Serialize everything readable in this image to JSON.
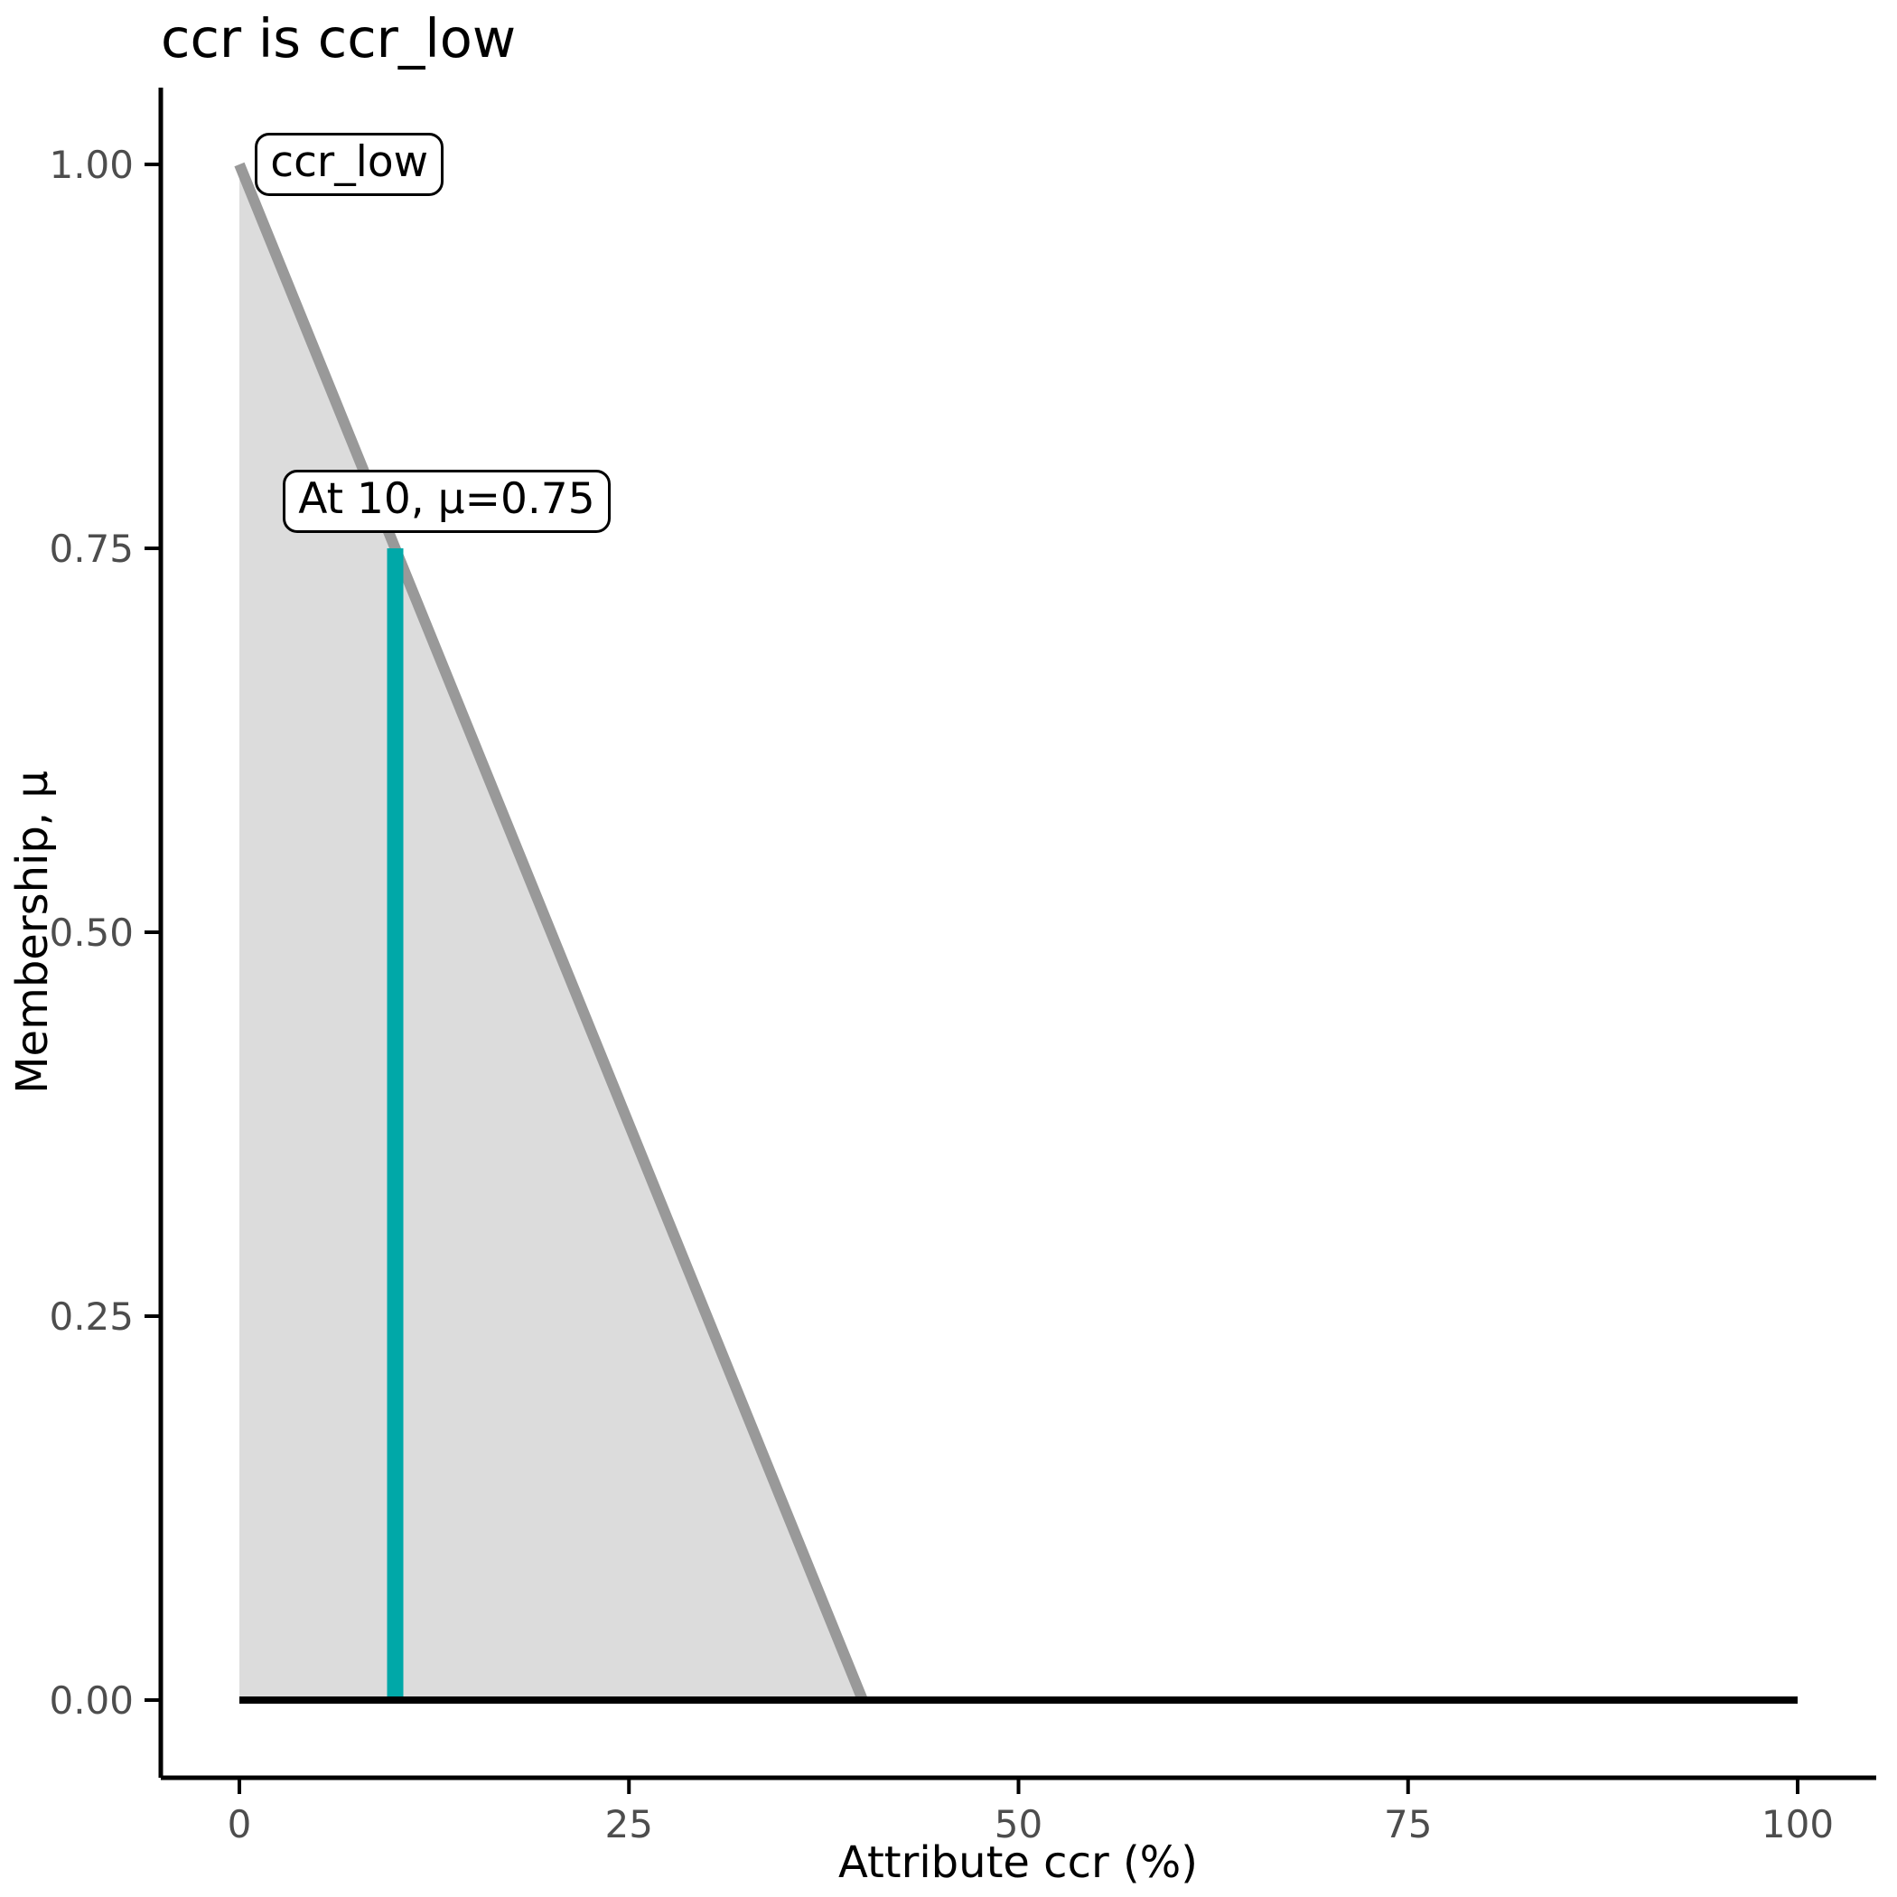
{
  "title": "ccr is ccr_low",
  "colors": {
    "membership_line": "#999999",
    "membership_fill": "#DCDCDC",
    "highlight_line": "#00A8A8",
    "baseline": "#000000",
    "axis": "#000000",
    "tick_text": "#4D4D4D",
    "title_text": "#000000"
  },
  "chart_data": {
    "type": "area",
    "title": "ccr is ccr_low",
    "xlabel": "Attribute ccr (%)",
    "ylabel": "Membership, μ",
    "xlim": [
      0,
      100
    ],
    "ylim": [
      0,
      1
    ],
    "x_ticks": [
      {
        "value": 0,
        "label": "0"
      },
      {
        "value": 25,
        "label": "25"
      },
      {
        "value": 50,
        "label": "50"
      },
      {
        "value": 75,
        "label": "75"
      },
      {
        "value": 100,
        "label": "100"
      }
    ],
    "y_ticks": [
      {
        "value": 0,
        "label": "0.00"
      },
      {
        "value": 0.25,
        "label": "0.25"
      },
      {
        "value": 0.5,
        "label": "0.50"
      },
      {
        "value": 0.75,
        "label": "0.75"
      },
      {
        "value": 1,
        "label": "1.00"
      }
    ],
    "grid": false,
    "legend": false,
    "series": [
      {
        "name": "ccr_low-membership-function",
        "kind": "line-with-area",
        "x": [
          0,
          40
        ],
        "y": [
          1,
          0
        ],
        "fill_polygon": [
          [
            0,
            1
          ],
          [
            40,
            0
          ],
          [
            0,
            0
          ]
        ],
        "line_color": "#999999",
        "fill_color": "#DCDCDC",
        "line_width": 12
      },
      {
        "name": "zero-membership-baseline",
        "kind": "line",
        "x": [
          0,
          100
        ],
        "y": [
          0,
          0
        ],
        "line_color": "#000000",
        "line_width": 8
      },
      {
        "name": "evaluation-line-at-10",
        "kind": "vline",
        "x": 10,
        "y_from": 0,
        "y_to": 0.75,
        "line_color": "#00A8A8",
        "line_width": 18
      }
    ],
    "annotations": [
      {
        "id": "ccr-low-set-label",
        "text": "ccr_low",
        "x": 1.0,
        "y": 1.0,
        "dy": 0
      },
      {
        "id": "evaluation-label",
        "text": "At 10, μ=0.75",
        "x": 2.8,
        "y": 0.75,
        "dy": -52
      }
    ]
  }
}
